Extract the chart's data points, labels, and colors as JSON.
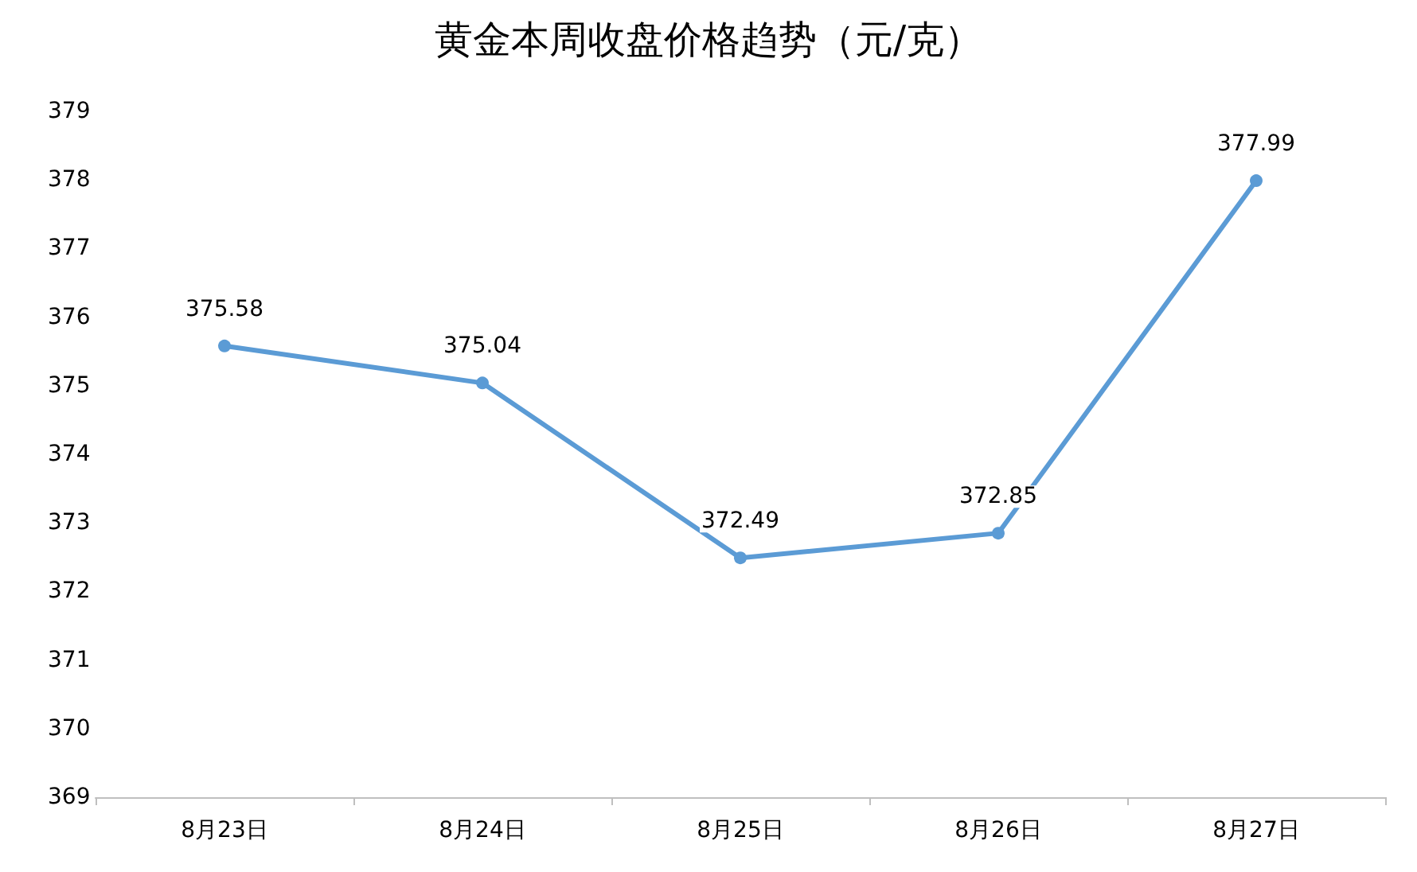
{
  "chart_data": {
    "type": "line",
    "title": "黄金本周收盘价格趋势（元/克）",
    "categories": [
      "8月23日",
      "8月24日",
      "8月25日",
      "8月26日",
      "8月27日"
    ],
    "series": [
      {
        "color": "#5b9bd5",
        "values": [
          375.58,
          375.04,
          372.49,
          372.85,
          377.99
        ]
      }
    ],
    "ylim": [
      369,
      379
    ],
    "yticks": [
      369,
      370,
      371,
      372,
      373,
      374,
      375,
      376,
      377,
      378,
      379
    ],
    "grid": false,
    "marker": "circle",
    "line_style": "solid",
    "data_labels": true
  }
}
